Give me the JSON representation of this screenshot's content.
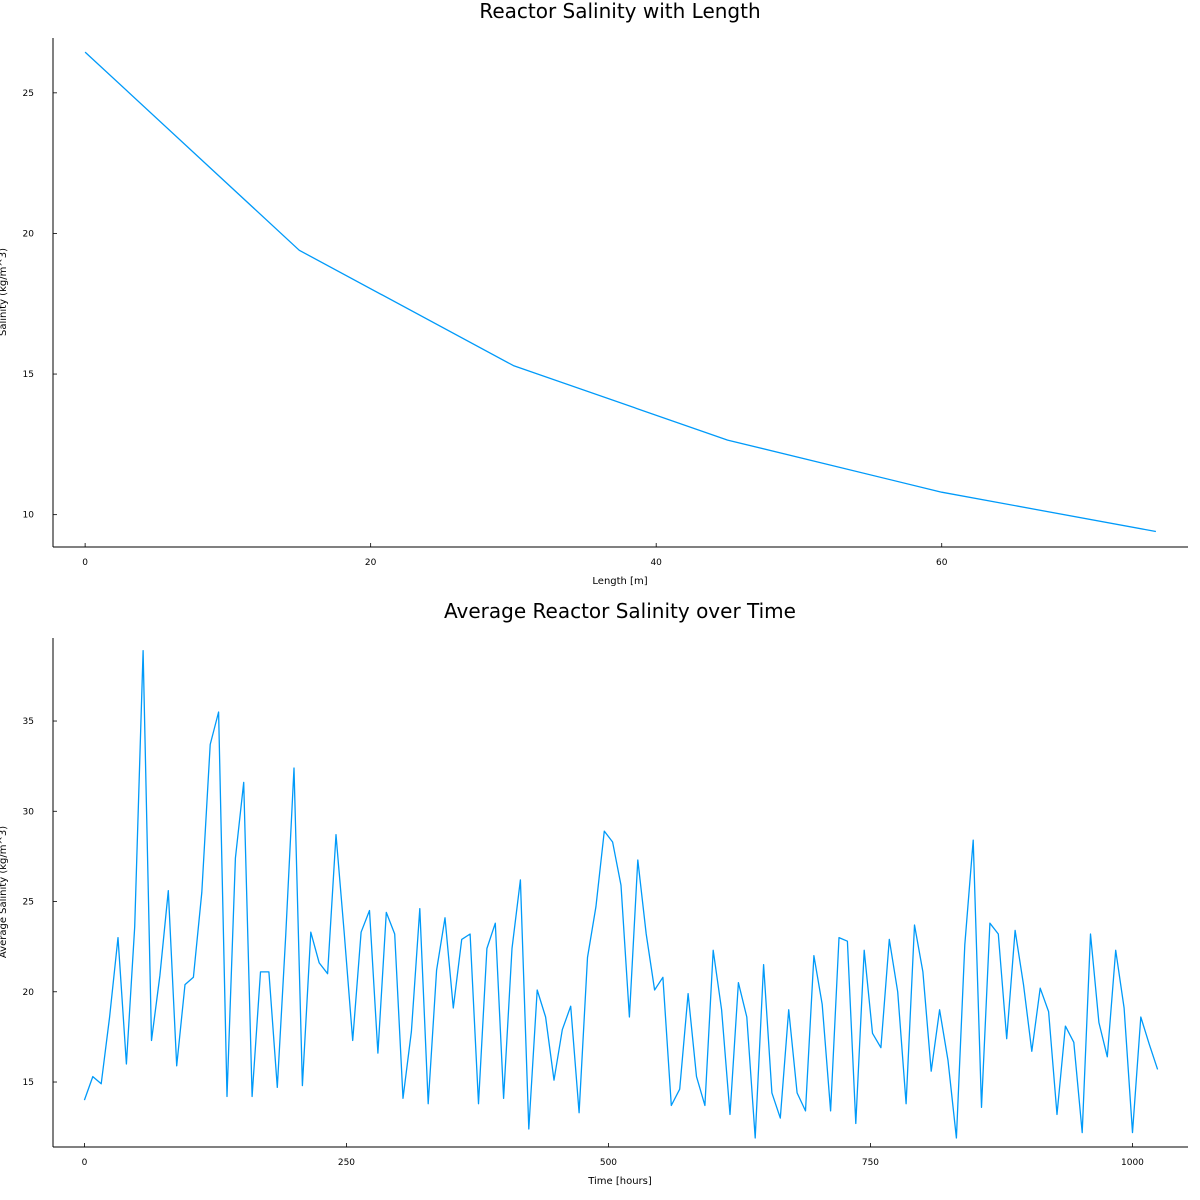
{
  "colors": {
    "series": "#009af9",
    "axis": "#000000"
  },
  "chart_data": [
    {
      "type": "line",
      "title": "Reactor Salinity with Length",
      "xlabel": "Length [m]",
      "ylabel": "Salinity (kg/m^3)",
      "xlim": [
        -2.25,
        77.25
      ],
      "ylim": [
        8.85,
        26.95
      ],
      "xticks": [
        0,
        20,
        40,
        60
      ],
      "yticks": [
        10,
        15,
        20,
        25
      ],
      "xtick_labels": [
        "0",
        "20",
        "40",
        "60"
      ],
      "ytick_labels": [
        "10",
        "15",
        "20",
        "25"
      ],
      "grid": false,
      "legend": "none",
      "series": [
        {
          "x": [
            0,
            15,
            30,
            45,
            60,
            75
          ],
          "y": [
            26.45,
            19.4,
            15.3,
            12.65,
            10.8,
            9.4
          ]
        }
      ]
    },
    {
      "type": "line",
      "title": "Average Reactor Salinity over Time",
      "xlabel": "Time [hours]",
      "ylabel": "Average Salinity (kg/m^3)",
      "xlim": [
        -30,
        1053
      ],
      "ylim": [
        11.4,
        39.6
      ],
      "xticks": [
        0,
        250,
        500,
        750,
        1000
      ],
      "yticks": [
        15,
        20,
        25,
        30,
        35
      ],
      "xtick_labels": [
        "0",
        "250",
        "500",
        "750",
        "1000"
      ],
      "ytick_labels": [
        "15",
        "20",
        "25",
        "30",
        "35"
      ],
      "grid": false,
      "legend": "none",
      "series": [
        {
          "x": [
            0,
            8,
            16,
            24,
            32,
            40,
            48,
            56,
            64,
            72,
            80,
            88,
            96,
            104,
            112,
            120,
            128,
            136,
            144,
            152,
            160,
            168,
            176,
            184,
            192,
            200,
            208,
            216,
            224,
            232,
            240,
            248,
            256,
            264,
            272,
            280,
            288,
            296,
            304,
            312,
            320,
            328,
            336,
            344,
            352,
            360,
            368,
            376,
            384,
            392,
            400,
            408,
            416,
            424,
            432,
            440,
            448,
            456,
            464,
            472,
            480,
            488,
            496,
            504,
            512,
            520,
            528,
            536,
            544,
            552,
            560,
            568,
            576,
            584,
            592,
            600,
            608,
            616,
            624,
            632,
            640,
            648,
            656,
            664,
            672,
            680,
            688,
            696,
            704,
            712,
            720,
            728,
            736,
            744,
            752,
            760,
            768,
            776,
            784,
            792,
            800,
            808,
            816,
            824,
            832,
            840,
            848,
            856,
            864,
            872,
            880,
            888,
            896,
            904,
            912,
            920,
            928,
            936,
            944,
            952,
            960,
            968,
            976,
            984,
            992,
            1000,
            1008,
            1016,
            1024
          ],
          "y": [
            14.0,
            15.3,
            14.9,
            18.6,
            23.0,
            16.0,
            23.6,
            38.9,
            17.3,
            20.9,
            25.6,
            15.9,
            20.4,
            20.8,
            25.5,
            33.7,
            35.5,
            14.2,
            27.4,
            31.6,
            14.2,
            21.1,
            21.1,
            14.7,
            23.1,
            32.4,
            14.8,
            23.3,
            21.6,
            21.0,
            28.7,
            23.2,
            17.3,
            23.3,
            24.5,
            16.6,
            24.4,
            23.2,
            14.1,
            17.8,
            24.6,
            13.8,
            21.2,
            24.1,
            19.1,
            22.9,
            23.2,
            13.8,
            22.4,
            23.8,
            14.1,
            22.4,
            26.2,
            12.4,
            20.1,
            18.6,
            15.1,
            17.9,
            19.2,
            13.3,
            21.9,
            24.7,
            28.9,
            28.3,
            25.9,
            18.6,
            27.3,
            23.2,
            20.1,
            20.8,
            13.7,
            14.6,
            19.9,
            15.3,
            13.7,
            22.3,
            19.0,
            13.2,
            20.5,
            18.6,
            11.9,
            21.5,
            14.4,
            13.0,
            19.0,
            14.4,
            13.4,
            22.0,
            19.3,
            13.4,
            23.0,
            22.8,
            12.7,
            22.3,
            17.7,
            16.9,
            22.9,
            20.0,
            13.8,
            23.7,
            21.1,
            15.6,
            19.0,
            16.2,
            11.9,
            22.6,
            28.4,
            13.6,
            23.8,
            23.2,
            17.4,
            23.4,
            20.4,
            16.7,
            20.2,
            18.9,
            13.2,
            18.1,
            17.2,
            12.2,
            23.2,
            18.3,
            16.4,
            22.3,
            19.1,
            12.2,
            18.6,
            17.1,
            15.7
          ]
        }
      ]
    }
  ]
}
